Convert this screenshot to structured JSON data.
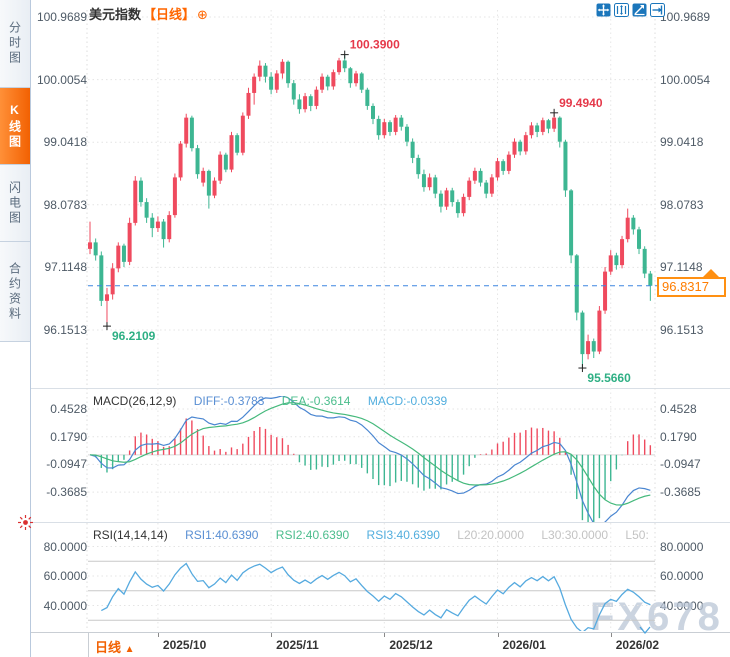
{
  "header": {
    "title": "美元指数",
    "period_tag": "【日线】",
    "add_icon": "⊕"
  },
  "sidebar": {
    "tabs": [
      {
        "label": "分时图",
        "active": false
      },
      {
        "label": "K线图",
        "active": true
      },
      {
        "label": "闪电图",
        "active": false
      },
      {
        "label": "合约资料",
        "active": false
      }
    ]
  },
  "toolbar": {
    "icons": [
      "move-icon",
      "fit-vertical-icon",
      "trend-line-icon",
      "pan-right-icon"
    ]
  },
  "bottom_bar": {
    "period_label": "日线",
    "arrow": "▲"
  },
  "watermark": "FX678",
  "colors": {
    "up": "#ef4a5e",
    "down": "#3db692",
    "accent_orange": "#ff6600",
    "diff_blue": "#4a86d1",
    "dea_green": "#45b97c",
    "macd_cyan": "#56aadf",
    "annotation_red": "#e5394a",
    "annotation_green": "#2eaf84",
    "price_line_blue": "#3d86e0",
    "grid": "#e4e4e4",
    "level_gray": "#c8c8c8"
  },
  "chart_data": {
    "type": "candlestick",
    "symbol": "美元指数",
    "period": "日线",
    "current_price": 96.8317,
    "price_axis": {
      "labels": [
        "100.9689",
        "100.0054",
        "99.0418",
        "98.0783",
        "97.1148",
        "96.1513"
      ]
    },
    "months": [
      {
        "label": "2025/10",
        "index": 12
      },
      {
        "label": "2025/11",
        "index": 32
      },
      {
        "label": "2025/12",
        "index": 52
      },
      {
        "label": "2026/01",
        "index": 72
      },
      {
        "label": "2026/02",
        "index": 92
      }
    ],
    "annotations": [
      {
        "index": 45,
        "price": 100.39,
        "text": "100.3900",
        "color": "#e5394a",
        "placement": "above"
      },
      {
        "index": 82,
        "price": 99.494,
        "text": "99.4940",
        "color": "#e5394a",
        "placement": "above"
      },
      {
        "index": 3,
        "price": 96.2109,
        "text": "96.2109",
        "color": "#2eaf84",
        "placement": "below"
      },
      {
        "index": 87,
        "price": 95.566,
        "text": "95.5660",
        "color": "#2eaf84",
        "placement": "below"
      }
    ],
    "macd": {
      "params": "MACD(26,12,9)",
      "diff_label": "DIFF:-0.3783",
      "dea_label": "DEA:-0.3614",
      "macd_label": "MACD:-0.0339",
      "axis_labels": [
        "0.4528",
        "0.1790",
        "-0.0947",
        "-0.3685"
      ]
    },
    "rsi": {
      "params": "RSI(14,14,14)",
      "rsi1_label": "RSI1:40.6390",
      "rsi2_label": "RSI2:40.6390",
      "rsi3_label": "RSI3:40.6390",
      "l20_label": "L20:20.0000",
      "l30_label": "L30:30.0000",
      "l50_label": "L50:",
      "axis_labels": [
        "80.0000",
        "60.0000",
        "40.0000"
      ],
      "level_lines": [
        70,
        50,
        30
      ]
    },
    "candles": [
      [
        97.4,
        97.82,
        97.32,
        97.5
      ],
      [
        97.5,
        97.56,
        97.22,
        97.3
      ],
      [
        97.3,
        97.36,
        96.52,
        96.6
      ],
      [
        96.6,
        96.8,
        96.2109,
        96.7
      ],
      [
        96.7,
        97.18,
        96.62,
        97.1
      ],
      [
        97.1,
        97.5,
        97.04,
        97.45
      ],
      [
        97.45,
        97.48,
        97.12,
        97.2
      ],
      [
        97.2,
        97.88,
        97.15,
        97.8
      ],
      [
        97.8,
        98.52,
        97.76,
        98.45
      ],
      [
        98.45,
        98.5,
        98.05,
        98.12
      ],
      [
        98.12,
        98.18,
        97.8,
        97.88
      ],
      [
        97.88,
        97.95,
        97.58,
        97.72
      ],
      [
        97.72,
        97.9,
        97.66,
        97.82
      ],
      [
        97.82,
        97.86,
        97.42,
        97.55
      ],
      [
        97.55,
        97.98,
        97.5,
        97.92
      ],
      [
        97.92,
        98.56,
        97.88,
        98.5
      ],
      [
        98.5,
        99.06,
        98.45,
        99.02
      ],
      [
        99.02,
        99.48,
        98.96,
        99.42
      ],
      [
        99.42,
        99.45,
        98.9,
        98.95
      ],
      [
        98.95,
        99.0,
        98.48,
        98.55
      ],
      [
        98.42,
        98.65,
        98.36,
        98.6
      ],
      [
        98.6,
        98.62,
        98.02,
        98.22
      ],
      [
        98.22,
        98.5,
        98.18,
        98.45
      ],
      [
        98.45,
        98.9,
        98.4,
        98.85
      ],
      [
        98.85,
        98.88,
        98.58,
        98.62
      ],
      [
        98.62,
        99.2,
        98.58,
        99.15
      ],
      [
        99.15,
        99.18,
        98.84,
        98.88
      ],
      [
        98.88,
        99.5,
        98.84,
        99.45
      ],
      [
        99.45,
        99.88,
        99.4,
        99.8
      ],
      [
        99.8,
        100.1,
        99.62,
        100.05
      ],
      [
        100.05,
        100.3,
        99.98,
        100.22
      ],
      [
        100.22,
        100.26,
        99.96,
        100.05
      ],
      [
        100.05,
        100.12,
        99.78,
        99.85
      ],
      [
        99.85,
        100.15,
        99.8,
        100.1
      ],
      [
        100.1,
        100.32,
        100.02,
        100.28
      ],
      [
        100.28,
        100.3,
        99.88,
        99.95
      ],
      [
        99.95,
        100.0,
        99.62,
        99.7
      ],
      [
        99.7,
        99.78,
        99.48,
        99.55
      ],
      [
        99.55,
        99.8,
        99.5,
        99.75
      ],
      [
        99.75,
        99.78,
        99.52,
        99.6
      ],
      [
        99.6,
        99.9,
        99.55,
        99.85
      ],
      [
        99.85,
        100.1,
        99.8,
        100.05
      ],
      [
        100.05,
        100.08,
        99.84,
        99.9
      ],
      [
        99.9,
        100.16,
        99.85,
        100.12
      ],
      [
        100.12,
        100.34,
        100.08,
        100.3
      ],
      [
        100.3,
        100.39,
        100.12,
        100.18
      ],
      [
        100.18,
        100.2,
        99.88,
        99.95
      ],
      [
        99.95,
        100.14,
        99.9,
        100.1
      ],
      [
        100.1,
        100.12,
        99.8,
        99.85
      ],
      [
        99.85,
        99.88,
        99.54,
        99.6
      ],
      [
        99.6,
        99.64,
        99.32,
        99.4
      ],
      [
        99.4,
        99.45,
        99.08,
        99.15
      ],
      [
        99.15,
        99.4,
        99.1,
        99.35
      ],
      [
        99.35,
        99.38,
        99.14,
        99.2
      ],
      [
        99.2,
        99.46,
        99.15,
        99.42
      ],
      [
        99.42,
        99.46,
        99.22,
        99.28
      ],
      [
        99.28,
        99.32,
        98.98,
        99.05
      ],
      [
        99.05,
        99.1,
        98.72,
        98.8
      ],
      [
        98.8,
        98.85,
        98.48,
        98.55
      ],
      [
        98.55,
        98.62,
        98.28,
        98.35
      ],
      [
        98.35,
        98.56,
        98.3,
        98.5
      ],
      [
        98.5,
        98.54,
        98.18,
        98.25
      ],
      [
        98.25,
        98.3,
        97.96,
        98.05
      ],
      [
        98.05,
        98.34,
        98.0,
        98.3
      ],
      [
        98.3,
        98.34,
        98.05,
        98.12
      ],
      [
        98.12,
        98.16,
        97.88,
        97.95
      ],
      [
        97.95,
        98.25,
        97.9,
        98.2
      ],
      [
        98.2,
        98.5,
        98.15,
        98.45
      ],
      [
        98.45,
        98.65,
        98.4,
        98.6
      ],
      [
        98.6,
        98.64,
        98.36,
        98.42
      ],
      [
        98.42,
        98.46,
        98.18,
        98.25
      ],
      [
        98.25,
        98.55,
        98.2,
        98.5
      ],
      [
        98.5,
        98.8,
        98.45,
        98.75
      ],
      [
        98.75,
        98.78,
        98.54,
        98.6
      ],
      [
        98.6,
        98.9,
        98.55,
        98.85
      ],
      [
        98.85,
        99.1,
        98.8,
        99.05
      ],
      [
        99.05,
        99.08,
        98.84,
        98.9
      ],
      [
        98.9,
        99.2,
        98.85,
        99.15
      ],
      [
        99.15,
        99.35,
        99.1,
        99.3
      ],
      [
        99.3,
        99.34,
        99.12,
        99.2
      ],
      [
        99.2,
        99.42,
        99.15,
        99.38
      ],
      [
        99.38,
        99.4,
        99.18,
        99.25
      ],
      [
        99.25,
        99.494,
        99.2,
        99.42
      ],
      [
        99.42,
        99.44,
        98.96,
        99.05
      ],
      [
        99.05,
        99.08,
        98.2,
        98.3
      ],
      [
        98.3,
        98.32,
        97.18,
        97.3
      ],
      [
        97.3,
        97.32,
        96.3,
        96.42
      ],
      [
        96.42,
        96.45,
        95.566,
        95.78
      ],
      [
        95.78,
        96.08,
        95.7,
        95.98
      ],
      [
        95.98,
        96.02,
        95.72,
        95.82
      ],
      [
        95.82,
        96.52,
        95.78,
        96.45
      ],
      [
        96.45,
        97.12,
        96.4,
        97.05
      ],
      [
        97.05,
        97.38,
        97.0,
        97.3
      ],
      [
        97.3,
        97.34,
        97.08,
        97.15
      ],
      [
        97.15,
        97.6,
        97.1,
        97.55
      ],
      [
        97.55,
        98.02,
        97.5,
        97.88
      ],
      [
        97.88,
        97.92,
        97.62,
        97.7
      ],
      [
        97.7,
        97.74,
        97.32,
        97.4
      ],
      [
        97.4,
        97.44,
        96.95,
        97.02
      ],
      [
        97.02,
        97.06,
        96.6,
        96.8317
      ]
    ]
  }
}
